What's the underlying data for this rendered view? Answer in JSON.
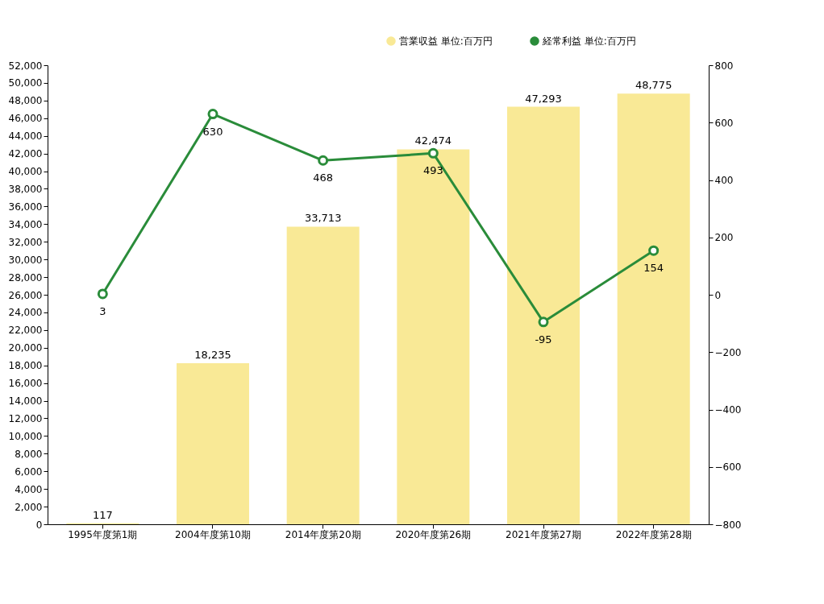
{
  "chart_data": {
    "type": "bar",
    "categories": [
      "1995年度第1期",
      "2004年度第10期",
      "2014年度第20期",
      "2020年度第26期",
      "2021年度第27期",
      "2022年度第28期"
    ],
    "series": [
      {
        "name": "営業収益  単位:百万円",
        "color": "#f9e996",
        "values": [
          117,
          18235,
          33713,
          42474,
          47293,
          48775
        ],
        "value_labels": [
          "117",
          "18,235",
          "33,713",
          "42,474",
          "47,293",
          "48,775"
        ]
      },
      {
        "name": "経常利益  単位:百万円",
        "type": "line",
        "axis": "y2",
        "color": "#2a8c3a",
        "marker": "circle",
        "values": [
          3,
          630,
          468,
          493,
          -95,
          154
        ],
        "value_labels": [
          "3",
          "630",
          "468",
          "493",
          "-95",
          "154"
        ]
      }
    ],
    "ylim": [
      0,
      52000
    ],
    "yticks": [
      0,
      {
        "value": 2000,
        "label": "2,000"
      },
      {
        "value": 4000,
        "label": "4,000"
      },
      {
        "value": 6000,
        "label": "6,000"
      },
      {
        "value": 8000,
        "label": "8,000"
      },
      {
        "value": 10000,
        "label": "10,000"
      },
      {
        "value": 12000,
        "label": "12,000"
      },
      {
        "value": 14000,
        "label": "14,000"
      },
      {
        "value": 16000,
        "label": "16,000"
      },
      {
        "value": 18000,
        "label": "18,000"
      },
      {
        "value": 20000,
        "label": "20,000"
      },
      {
        "value": 22000,
        "label": "22,000"
      },
      {
        "value": 24000,
        "label": "24,000"
      },
      {
        "value": 26000,
        "label": "26,000"
      },
      {
        "value": 28000,
        "label": "28,000"
      },
      {
        "value": 30000,
        "label": "30,000"
      },
      {
        "value": 32000,
        "label": "32,000"
      },
      {
        "value": 34000,
        "label": "34,000"
      },
      {
        "value": 36000,
        "label": "36,000"
      },
      {
        "value": 38000,
        "label": "38,000"
      },
      {
        "value": 40000,
        "label": "40,000"
      },
      {
        "value": 42000,
        "label": "42,000"
      },
      {
        "value": 44000,
        "label": "44,000"
      },
      {
        "value": 46000,
        "label": "46,000"
      },
      {
        "value": 48000,
        "label": "48,000"
      },
      {
        "value": 50000,
        "label": "50,000"
      },
      {
        "value": 52000,
        "label": "52,000"
      }
    ],
    "y2lim": [
      -800,
      800
    ],
    "y2ticks": [
      -800,
      -600,
      -400,
      -200,
      0,
      200,
      400,
      600,
      800
    ],
    "legend": "top right",
    "grid": false
  }
}
